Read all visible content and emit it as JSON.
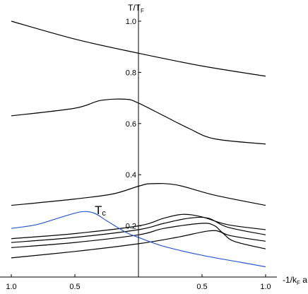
{
  "chart_data": {
    "type": "line",
    "xlabel": "-1/k",
    "xlabel_sub": "F",
    "xlabel_tail": " a",
    "ylabel": "T/T",
    "ylabel_sub": "F",
    "xlim": [
      -1.0,
      1.0
    ],
    "ylim": [
      0.0,
      1.0
    ],
    "x_ticks": [
      {
        "value": -1.0,
        "label": "1.0"
      },
      {
        "value": -0.5,
        "label": "0.5"
      },
      {
        "value": 0.5,
        "label": "0.5"
      },
      {
        "value": 1.0,
        "label": "1.0"
      }
    ],
    "y_ticks": [
      {
        "value": 0.2,
        "label": "0.2"
      },
      {
        "value": 0.4,
        "label": "0.4"
      },
      {
        "value": 0.6,
        "label": "0.6"
      },
      {
        "value": 0.8,
        "label": "0.8"
      },
      {
        "value": 1.0,
        "label": "1.0"
      }
    ],
    "grid": false,
    "series": [
      {
        "color": "#000000",
        "x": [
          -1.0,
          -0.5,
          0.0,
          0.5,
          1.0
        ],
        "y": [
          1.0,
          0.93,
          0.875,
          0.825,
          0.785
        ]
      },
      {
        "color": "#000000",
        "x": [
          -1.0,
          -0.5,
          -0.3,
          -0.1,
          0.0,
          0.2,
          0.4,
          0.6,
          1.0
        ],
        "y": [
          0.63,
          0.66,
          0.69,
          0.695,
          0.68,
          0.63,
          0.58,
          0.54,
          0.52
        ]
      },
      {
        "color": "#000000",
        "x": [
          -1.0,
          -0.5,
          -0.2,
          0.0,
          0.1,
          0.3,
          0.6,
          1.0
        ],
        "y": [
          0.28,
          0.305,
          0.325,
          0.355,
          0.365,
          0.36,
          0.32,
          0.28
        ]
      },
      {
        "color": "#000000",
        "x": [
          -1.0,
          -0.5,
          0.0,
          0.2,
          0.35,
          0.5,
          0.7,
          1.0
        ],
        "y": [
          0.15,
          0.17,
          0.2,
          0.23,
          0.245,
          0.235,
          0.205,
          0.185
        ]
      },
      {
        "color": "#000000",
        "x": [
          -1.0,
          -0.5,
          0.0,
          0.2,
          0.4,
          0.55,
          0.7,
          1.0
        ],
        "y": [
          0.135,
          0.155,
          0.185,
          0.21,
          0.23,
          0.23,
          0.195,
          0.165
        ]
      },
      {
        "color": "#000000",
        "x": [
          -1.0,
          -0.5,
          0.0,
          0.2,
          0.5,
          0.6,
          0.7,
          1.0
        ],
        "y": [
          0.115,
          0.135,
          0.165,
          0.19,
          0.21,
          0.2,
          0.165,
          0.14
        ]
      },
      {
        "color": "#000000",
        "x": [
          -1.0,
          -0.5,
          0.0,
          0.3,
          0.55,
          0.65,
          0.75,
          1.0
        ],
        "y": [
          0.075,
          0.1,
          0.13,
          0.155,
          0.18,
          0.175,
          0.14,
          0.11
        ]
      },
      {
        "name": "T",
        "name_sub": "c",
        "color": "#2a5ad8",
        "x": [
          -1.0,
          -0.8,
          -0.6,
          -0.45,
          -0.35,
          -0.25,
          -0.1,
          0.0,
          0.2,
          0.5,
          0.8,
          1.0
        ],
        "y": [
          0.19,
          0.205,
          0.235,
          0.255,
          0.25,
          0.22,
          0.175,
          0.155,
          0.12,
          0.085,
          0.058,
          0.04
        ]
      }
    ]
  }
}
